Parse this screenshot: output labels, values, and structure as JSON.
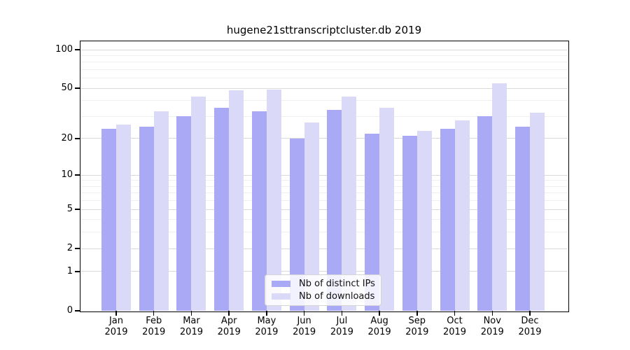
{
  "title": "hugene21sttranscriptcluster.db 2019",
  "chart_data": {
    "type": "bar",
    "title": "hugene21sttranscriptcluster.db 2019",
    "categories": [
      {
        "month": "Jan",
        "year": "2019"
      },
      {
        "month": "Feb",
        "year": "2019"
      },
      {
        "month": "Mar",
        "year": "2019"
      },
      {
        "month": "Apr",
        "year": "2019"
      },
      {
        "month": "May",
        "year": "2019"
      },
      {
        "month": "Jun",
        "year": "2019"
      },
      {
        "month": "Jul",
        "year": "2019"
      },
      {
        "month": "Aug",
        "year": "2019"
      },
      {
        "month": "Sep",
        "year": "2019"
      },
      {
        "month": "Oct",
        "year": "2019"
      },
      {
        "month": "Nov",
        "year": "2019"
      },
      {
        "month": "Dec",
        "year": "2019"
      }
    ],
    "series": [
      {
        "name": "Nb of distinct IPs",
        "color": "#a9a9f5",
        "values": [
          24,
          25,
          30,
          35,
          33,
          20,
          34,
          22,
          21,
          24,
          30,
          25
        ]
      },
      {
        "name": "Nb of downloads",
        "color": "#dadaf8",
        "values": [
          26,
          33,
          43,
          48,
          49,
          27,
          43,
          35,
          23,
          28,
          55,
          32
        ]
      }
    ],
    "y_axis": {
      "scale": "log1p",
      "tick_values": [
        0,
        1,
        2,
        5,
        10,
        20,
        50,
        100
      ],
      "tick_labels": [
        "0",
        "1",
        "2",
        "5",
        "10",
        "20",
        "50",
        "100"
      ],
      "minor_gridline_values": [
        3,
        4,
        6,
        7,
        8,
        9,
        30,
        40,
        60,
        70,
        80,
        90
      ],
      "range_top_value": 116
    },
    "xlabel": "",
    "ylabel": "",
    "grid": true,
    "legend_position": "bottom-center"
  },
  "colors": {
    "background": "#ffffff",
    "axis_spine": "#000000",
    "major_gridline": "#d9d9d9",
    "minor_gridline": "#efefef",
    "bar_distinct_ips": "#a9a9f5",
    "bar_downloads": "#dadaf8"
  }
}
